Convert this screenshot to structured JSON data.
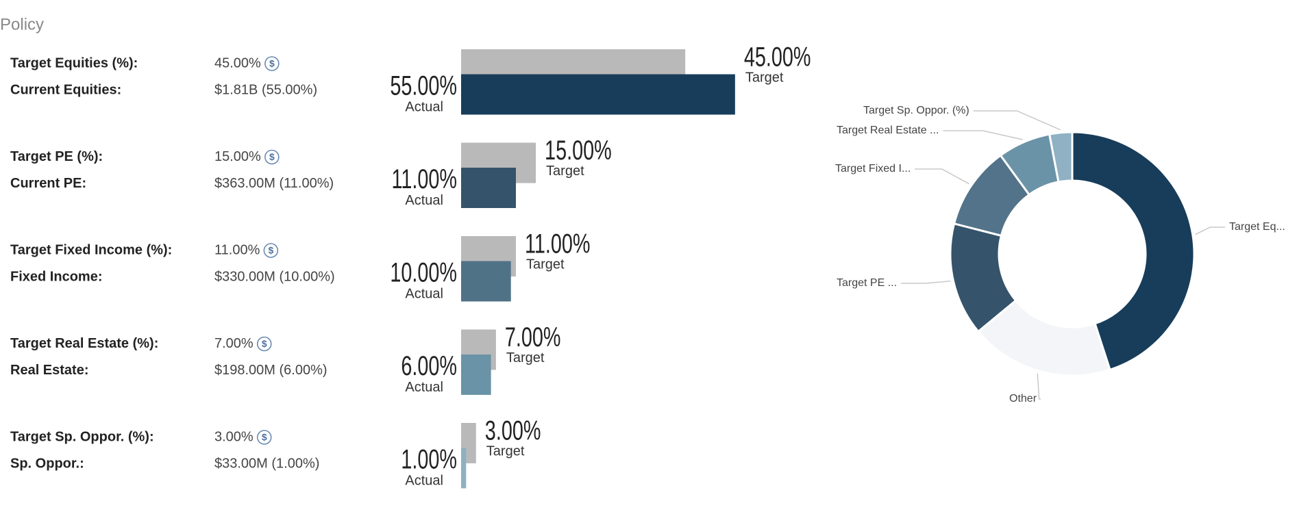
{
  "header": {
    "title": "Policy"
  },
  "target_caption": "Target",
  "actual_caption": "Actual",
  "currency_icon": "$",
  "target_bar_color": "#b9b9b9",
  "rows": [
    {
      "target_label": "Target Equities (%):",
      "target_text": "45.00%",
      "current_label": "Current Equities:",
      "current_value": "$1.81B (55.00%)",
      "actual_text": "55.00%",
      "target": 45,
      "actual": 55,
      "color": "#173d5a"
    },
    {
      "target_label": "Target PE (%):",
      "target_text": "15.00%",
      "current_label": "Current PE:",
      "current_value": "$363.00M (11.00%)",
      "actual_text": "11.00%",
      "target": 15,
      "actual": 11,
      "color": "#35546b"
    },
    {
      "target_label": "Target Fixed Income (%):",
      "target_text": "11.00%",
      "current_label": "Fixed Income:",
      "current_value": "$330.00M (10.00%)",
      "actual_text": "10.00%",
      "target": 11,
      "actual": 10,
      "color": "#507287"
    },
    {
      "target_label": "Target Real Estate (%):",
      "target_text": "7.00%",
      "current_label": "Real Estate:",
      "current_value": "$198.00M (6.00%)",
      "actual_text": "6.00%",
      "target": 7,
      "actual": 6,
      "color": "#6a93a7"
    },
    {
      "target_label": "Target Sp. Oppor. (%):",
      "target_text": "3.00%",
      "current_label": "Sp. Oppor.:",
      "current_value": "$33.00M (1.00%)",
      "actual_text": "1.00%",
      "target": 3,
      "actual": 1,
      "color": "#8db0c2"
    }
  ],
  "donut": {
    "labels": [
      "Target Eq...",
      "Other",
      "Target PE ...",
      "Target Fixed I...",
      "Target Real Estate ...",
      "Target Sp. Oppor. (%)"
    ],
    "values": [
      45,
      19,
      15,
      11,
      7,
      3
    ],
    "colors": [
      "#173d5a",
      "#f3f5f8",
      "#35546b",
      "#527389",
      "#6b93a8",
      "#8fb1c3"
    ]
  }
}
